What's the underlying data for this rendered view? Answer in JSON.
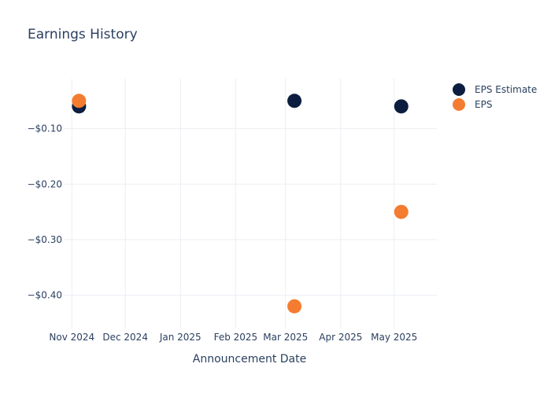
{
  "chart_data": {
    "type": "scatter",
    "title": "Earnings History",
    "xlabel": "Announcement Date",
    "ylabel": "",
    "x_ticks": [
      "Nov 2024",
      "Dec 2024",
      "Jan 2025",
      "Feb 2025",
      "Mar 2025",
      "Apr 2025",
      "May 2025"
    ],
    "y_ticks": [
      "−$0.10",
      "−$0.20",
      "−$0.30",
      "−$0.40"
    ],
    "y_tick_values": [
      -0.1,
      -0.2,
      -0.3,
      -0.4
    ],
    "ylim": [
      -0.46,
      -0.01
    ],
    "xlim": [
      "2024-10-27",
      "2025-05-25"
    ],
    "grid": true,
    "legend_position": "top-right",
    "series": [
      {
        "name": "EPS Estimate",
        "color": "#0b1e3f",
        "points": [
          {
            "x": "2024-11-05",
            "y": -0.06
          },
          {
            "x": "2025-03-06",
            "y": -0.05
          },
          {
            "x": "2025-05-05",
            "y": -0.06
          }
        ]
      },
      {
        "name": "EPS",
        "color": "#f47c30",
        "points": [
          {
            "x": "2024-11-05",
            "y": -0.05
          },
          {
            "x": "2025-03-06",
            "y": -0.42
          },
          {
            "x": "2025-05-05",
            "y": -0.25
          }
        ]
      }
    ]
  }
}
